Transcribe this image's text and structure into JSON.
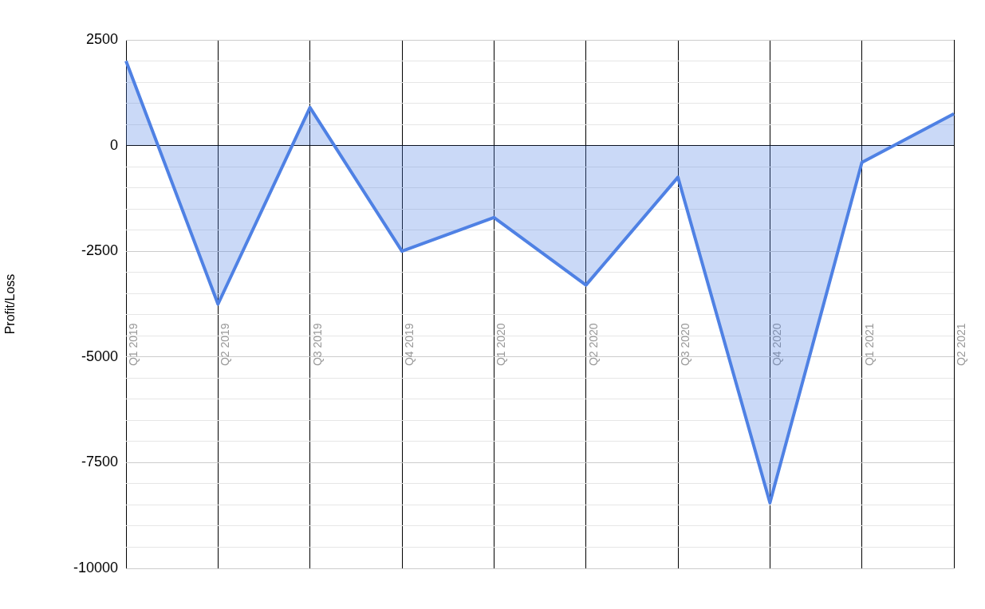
{
  "chart_data": {
    "type": "area",
    "ylabel": "Profit/Loss",
    "categories": [
      "Q1 2019",
      "Q2 2019",
      "Q3 2019",
      "Q4 2019",
      "Q1 2020",
      "Q2 2020",
      "Q3 2020",
      "Q4 2020",
      "Q1 2021",
      "Q2 2021"
    ],
    "series": [
      {
        "color": "#4f81e4",
        "values": [
          2000,
          -3750,
          900,
          -2500,
          -1700,
          -3300,
          -750,
          -8450,
          -400,
          750
        ]
      }
    ],
    "ylim": [
      -10000,
      2500
    ],
    "yticks": [
      -10000,
      {
        "value": -9500,
        "label": null
      },
      {
        "value": -9000,
        "label": null
      },
      {
        "value": -8500,
        "label": null
      },
      {
        "value": -8000,
        "label": null
      },
      -7500,
      {
        "value": -7000,
        "label": null
      },
      {
        "value": -6500,
        "label": null
      },
      {
        "value": -6000,
        "label": null
      },
      {
        "value": -5500,
        "label": null
      },
      -5000,
      {
        "value": -4500,
        "label": null
      },
      {
        "value": -4000,
        "label": null
      },
      {
        "value": -3500,
        "label": null
      },
      {
        "value": -3000,
        "label": null
      },
      -2500,
      {
        "value": -2000,
        "label": null
      },
      {
        "value": -1500,
        "label": null
      },
      {
        "value": -1000,
        "label": null
      },
      {
        "value": -500,
        "label": null
      },
      0,
      {
        "value": 500,
        "label": null
      },
      {
        "value": 1000,
        "label": null
      },
      {
        "value": 1500,
        "label": null
      },
      {
        "value": 2000,
        "label": null
      },
      2500
    ],
    "grid": true,
    "legend": false,
    "marker": "none",
    "line_style": "solid"
  }
}
